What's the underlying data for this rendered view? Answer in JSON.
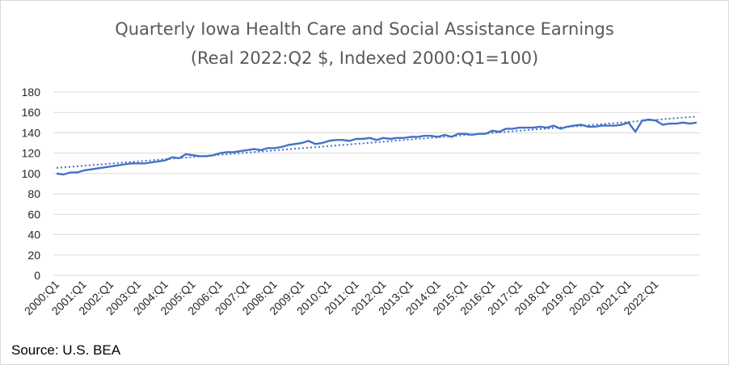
{
  "chart_data": {
    "type": "line",
    "title": "Quarterly Iowa Health Care and Social Assistance Earnings",
    "subtitle": "(Real 2022:Q2 $, Indexed 2000:Q1=100)",
    "source": "Source: U.S. BEA",
    "ylim": [
      0,
      180
    ],
    "yticks": [
      0,
      20,
      40,
      60,
      80,
      100,
      120,
      140,
      160,
      180
    ],
    "xtick_labels": [
      "2000:Q1",
      "2001:Q1",
      "2002:Q1",
      "2003:Q1",
      "2004:Q1",
      "2005:Q1",
      "2006:Q1",
      "2007:Q1",
      "2008:Q1",
      "2009:Q1",
      "2010:Q1",
      "2011:Q1",
      "2012:Q1",
      "2013:Q1",
      "2014:Q1",
      "2015:Q1",
      "2016:Q1",
      "2017:Q1",
      "2018:Q1",
      "2019:Q1",
      "2020:Q1",
      "2021:Q1",
      "2022:Q1"
    ],
    "grid": true,
    "series": [
      {
        "color": "#4472c4",
        "values": [
          100,
          99,
          101,
          101,
          103,
          104,
          105,
          106,
          107,
          108,
          109,
          110,
          110,
          110,
          111,
          112,
          113,
          116,
          115,
          119,
          118,
          117,
          117,
          118,
          120,
          121,
          121,
          122,
          123,
          124,
          123,
          125,
          125,
          126,
          128,
          129,
          130,
          132,
          129,
          130,
          132,
          133,
          133,
          132,
          134,
          134,
          135,
          133,
          135,
          134,
          135,
          135,
          136,
          136,
          137,
          137,
          136,
          138,
          136,
          139,
          139,
          138,
          139,
          139,
          142,
          141,
          144,
          144,
          145,
          145,
          145,
          146,
          145,
          147,
          144,
          146,
          147,
          148,
          146,
          146,
          147,
          147,
          147,
          148,
          150,
          141,
          152,
          153,
          152,
          148,
          149,
          149,
          150,
          149,
          150
        ]
      },
      {
        "style": "dotted-trendline",
        "color": "#4472c4",
        "values": [
          105.5,
          156
        ]
      }
    ]
  }
}
